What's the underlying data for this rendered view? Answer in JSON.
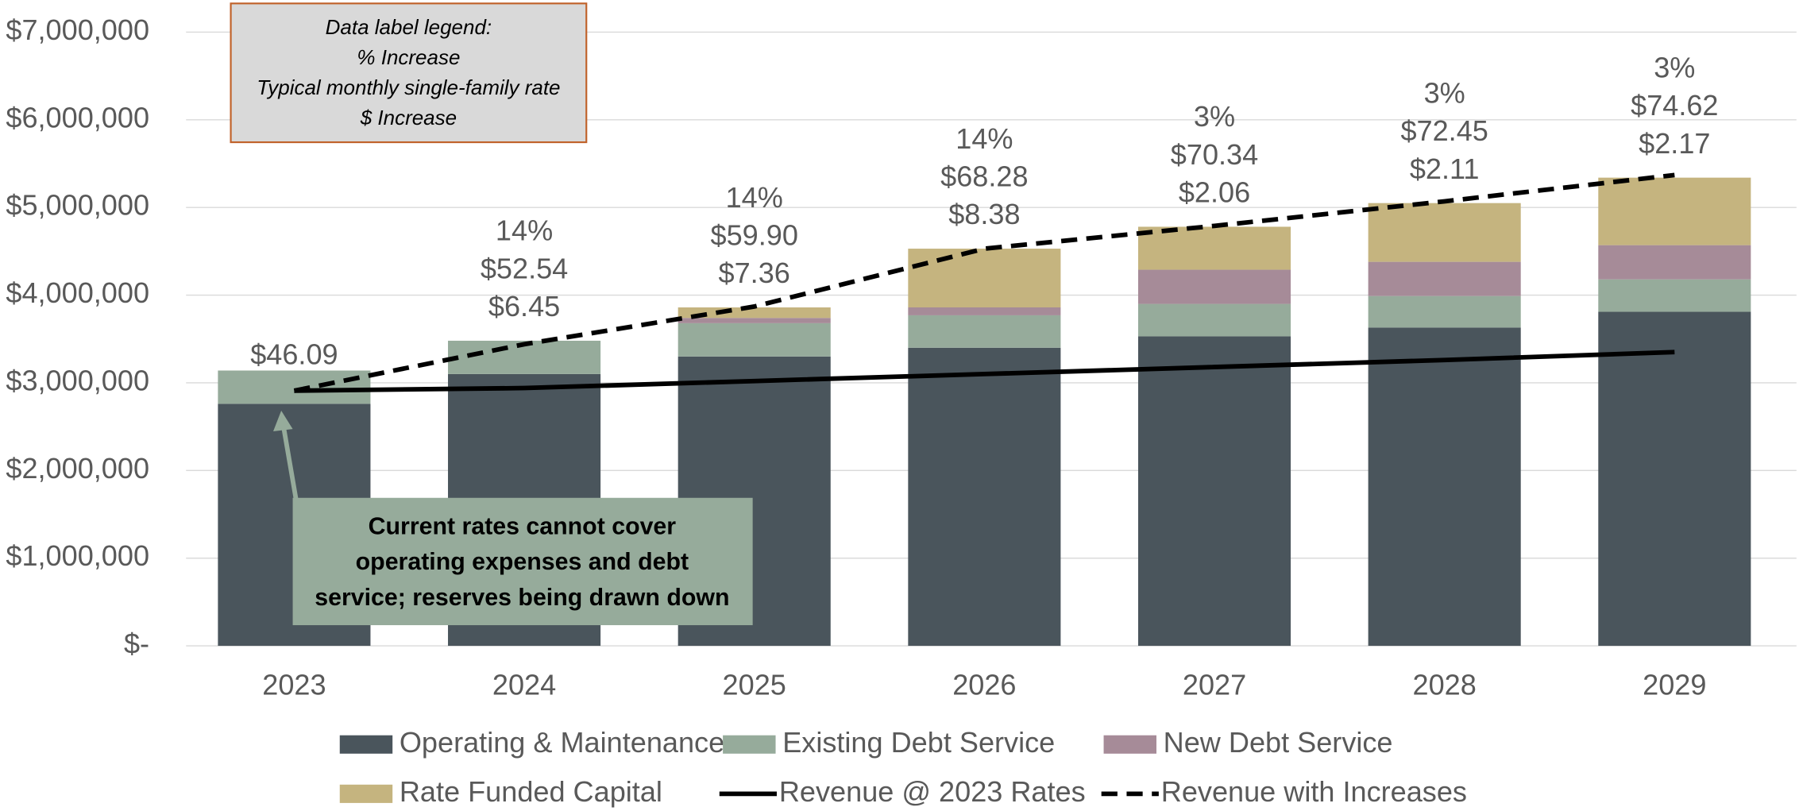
{
  "chart_data": {
    "type": "stacked-bar-line",
    "categories": [
      "2023",
      "2024",
      "2025",
      "2026",
      "2027",
      "2028",
      "2029"
    ],
    "series": [
      {
        "name": "Operating & Maintenance",
        "color": "#4a555c",
        "kind": "bar",
        "values": [
          2760000,
          3100000,
          3300000,
          3400000,
          3530000,
          3630000,
          3810000
        ]
      },
      {
        "name": "Existing Debt Service",
        "color": "#96ab9b",
        "kind": "bar",
        "values": [
          380000,
          380000,
          380000,
          370000,
          370000,
          360000,
          370000
        ]
      },
      {
        "name": "New Debt Service",
        "color": "#a68b98",
        "kind": "bar",
        "values": [
          0,
          0,
          60000,
          90000,
          390000,
          390000,
          390000
        ]
      },
      {
        "name": "Rate Funded Capital",
        "color": "#c5b47f",
        "kind": "bar",
        "values": [
          0,
          0,
          120000,
          670000,
          490000,
          670000,
          770000
        ]
      },
      {
        "name": "Revenue @ 2023 Rates",
        "color": "#000000",
        "kind": "line",
        "values": [
          2910000,
          2940000,
          3020000,
          3100000,
          3180000,
          3260000,
          3350000
        ]
      },
      {
        "name": "Revenue with Increases",
        "color": "#000000",
        "kind": "line",
        "dashed": true,
        "values": [
          2910000,
          3440000,
          3870000,
          4530000,
          4790000,
          5070000,
          5370000
        ]
      }
    ],
    "data_labels": [
      [
        "$46.09"
      ],
      [
        "14%",
        "$52.54",
        "$6.45"
      ],
      [
        "14%",
        "$59.90",
        "$7.36"
      ],
      [
        "14%",
        "$68.28",
        "$8.38"
      ],
      [
        "3%",
        "$70.34",
        "$2.06"
      ],
      [
        "3%",
        "$72.45",
        "$2.11"
      ],
      [
        "3%",
        "$74.62",
        "$2.17"
      ]
    ],
    "ylim": [
      0,
      7000000
    ],
    "yticks": [
      {
        "value": 0,
        "label": "$-"
      },
      {
        "value": 1000000,
        "label": "$1,000,000"
      },
      {
        "value": 2000000,
        "label": "$2,000,000"
      },
      {
        "value": 3000000,
        "label": "$3,000,000"
      },
      {
        "value": 4000000,
        "label": "$4,000,000"
      },
      {
        "value": 5000000,
        "label": "$5,000,000"
      },
      {
        "value": 6000000,
        "label": "$6,000,000"
      },
      {
        "value": 7000000,
        "label": "$7,000,000"
      }
    ],
    "grid": true,
    "label_legend": [
      "Data label legend:",
      "% Increase",
      "Typical monthly single-family rate",
      "$ Increase"
    ],
    "annotation": [
      "Current rates cannot cover",
      "operating expenses and debt",
      "service; reserves being drawn down"
    ]
  }
}
